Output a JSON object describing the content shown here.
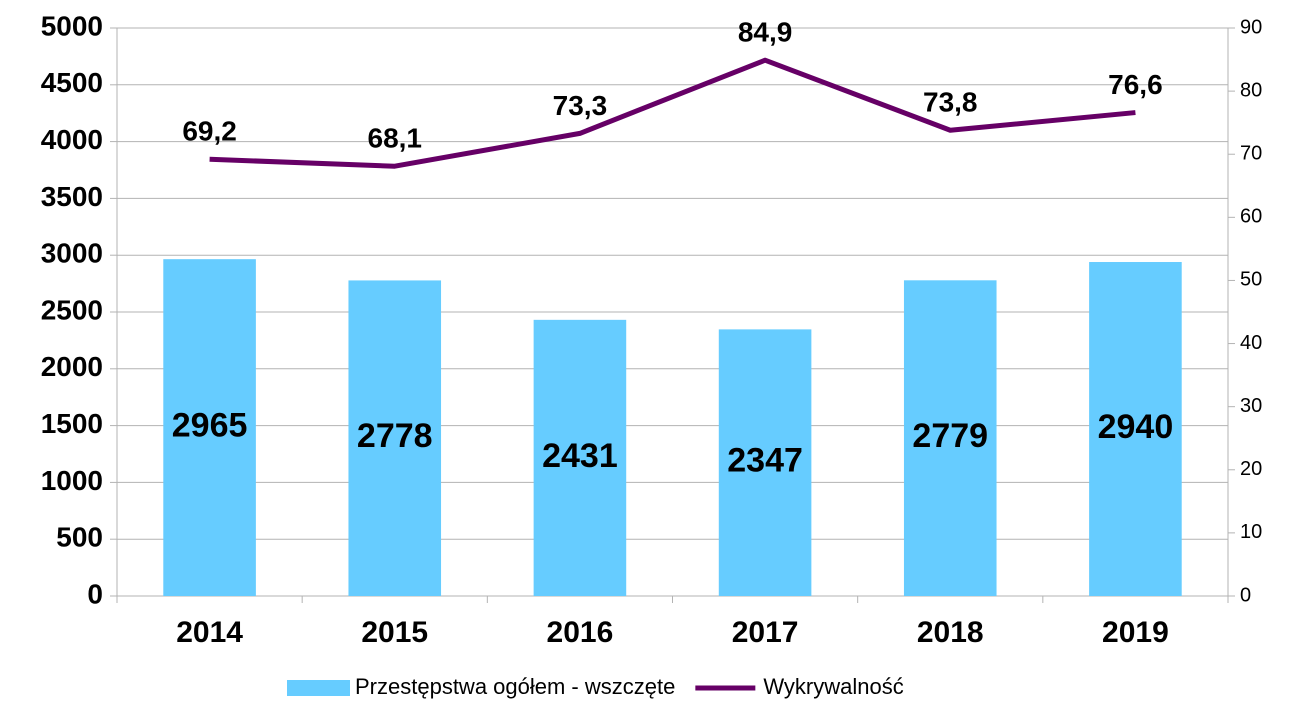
{
  "chart_data": {
    "type": "bar",
    "categories": [
      "2014",
      "2015",
      "2016",
      "2017",
      "2018",
      "2019"
    ],
    "series": [
      {
        "name": "Przestępstwa ogółem - wszczęte",
        "type": "bar",
        "color": "#66ccff",
        "values": [
          2965,
          2778,
          2431,
          2347,
          2779,
          2940
        ]
      },
      {
        "name": "Wykrywalność",
        "type": "line",
        "axis": "y2",
        "color": "#660066",
        "values": [
          69.2,
          68.1,
          73.3,
          84.9,
          73.8,
          76.6
        ],
        "value_labels": [
          "69,2",
          "68,1",
          "73,3",
          "84,9",
          "73,8",
          "76,6"
        ]
      }
    ],
    "ylim": [
      0,
      5000
    ],
    "yticks": [
      0,
      500,
      1000,
      1500,
      2000,
      2500,
      3000,
      3500,
      4000,
      4500,
      5000
    ],
    "y2lim": [
      0,
      90
    ],
    "y2ticks": [
      0,
      10,
      20,
      30,
      40,
      50,
      60,
      70,
      80,
      90
    ],
    "grid": true,
    "legend": "bottom"
  }
}
